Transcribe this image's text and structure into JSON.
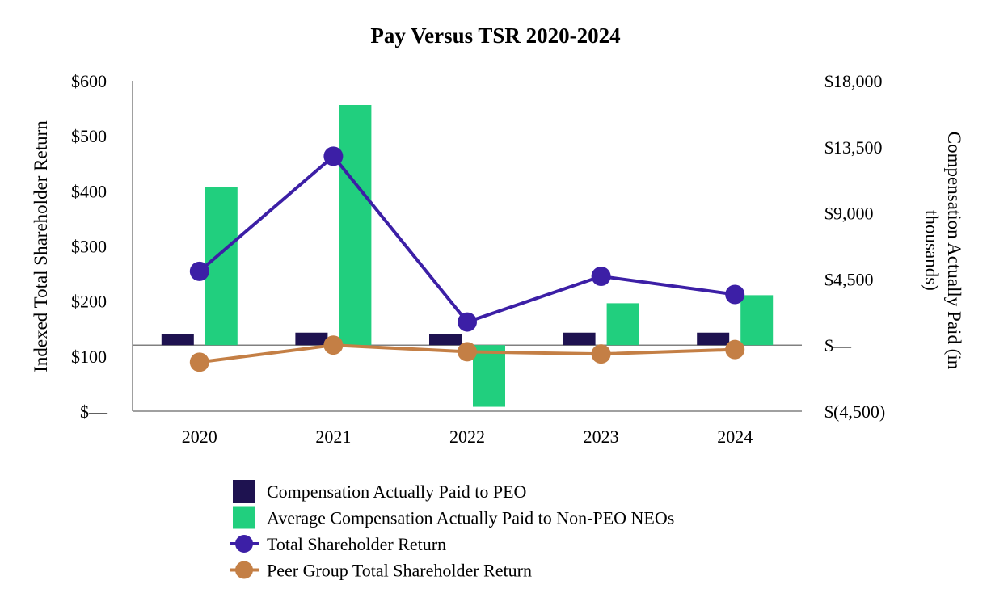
{
  "chart_data": {
    "type": "bar+line",
    "title": "Pay Versus TSR 2020-2024",
    "categories": [
      "2020",
      "2021",
      "2022",
      "2023",
      "2024"
    ],
    "left_axis": {
      "label": "Indexed Total Shareholder Return",
      "range": [
        0,
        600
      ],
      "ticks": [
        0,
        100,
        200,
        300,
        400,
        500,
        600
      ],
      "tick_labels": [
        "$—",
        "$100",
        "$200",
        "$300",
        "$400",
        "$500",
        "$600"
      ]
    },
    "right_axis": {
      "label_lines": [
        "Compensation Actually Paid (in",
        "thousands)"
      ],
      "range": [
        -4500,
        18000
      ],
      "ticks": [
        -4500,
        0,
        4500,
        9000,
        13500,
        18000
      ],
      "tick_labels": [
        "$(4,500)",
        "$—",
        "$4,500",
        "$9,000",
        "$13,500",
        "$18,000"
      ]
    },
    "bar_series": [
      {
        "name": "Compensation Actually Paid to PEO",
        "axis": "right",
        "color": "#1e1250",
        "values": [
          750,
          850,
          750,
          850,
          850
        ]
      },
      {
        "name": "Average Compensation Actually Paid to Non-PEO NEOs",
        "axis": "right",
        "color": "#21cf7e",
        "values": [
          10750,
          16350,
          -4200,
          2850,
          3400
        ]
      }
    ],
    "line_series": [
      {
        "name": "Total Shareholder Return",
        "axis": "left",
        "color": "#3c1fa6",
        "values": [
          254,
          463,
          162,
          245,
          212
        ]
      },
      {
        "name": "Peer Group Total Shareholder Return",
        "axis": "left",
        "color": "#c47f45",
        "values": [
          89,
          120,
          108,
          104,
          112
        ]
      }
    ],
    "legend_position": "bottom-center"
  }
}
